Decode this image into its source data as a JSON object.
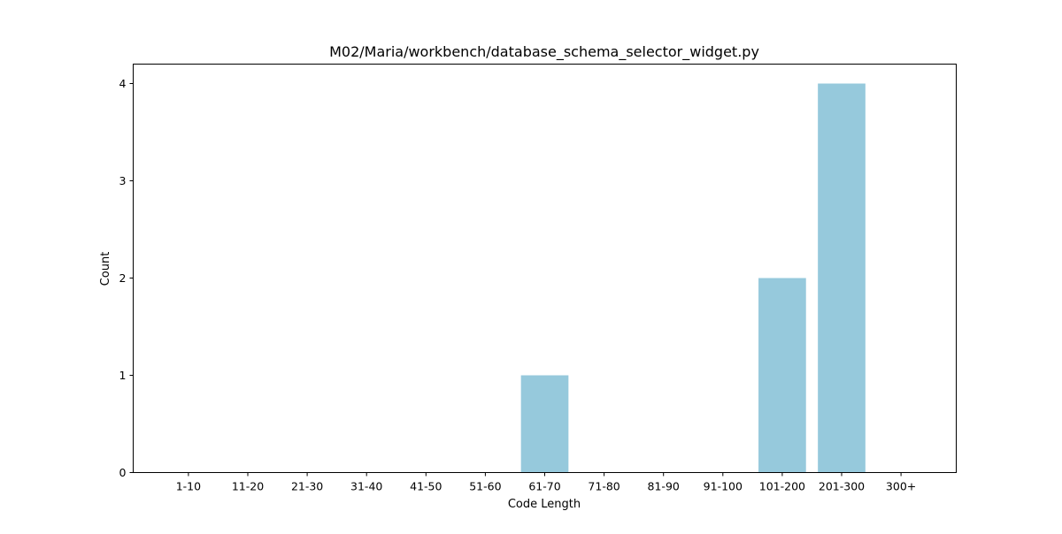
{
  "chart_data": {
    "type": "bar",
    "title": "M02/Maria/workbench/database_schema_selector_widget.py",
    "xlabel": "Code Length",
    "ylabel": "Count",
    "categories": [
      "1-10",
      "11-20",
      "21-30",
      "31-40",
      "41-50",
      "51-60",
      "61-70",
      "71-80",
      "81-90",
      "91-100",
      "101-200",
      "201-300",
      "300+"
    ],
    "values": [
      0,
      0,
      0,
      0,
      0,
      0,
      1,
      0,
      0,
      0,
      2,
      4,
      0
    ],
    "ylim": [
      0,
      4.2
    ],
    "yticks": [
      0,
      1,
      2,
      3,
      4
    ],
    "bar_color": "#96c9dc",
    "grid": false,
    "legend": "none"
  }
}
